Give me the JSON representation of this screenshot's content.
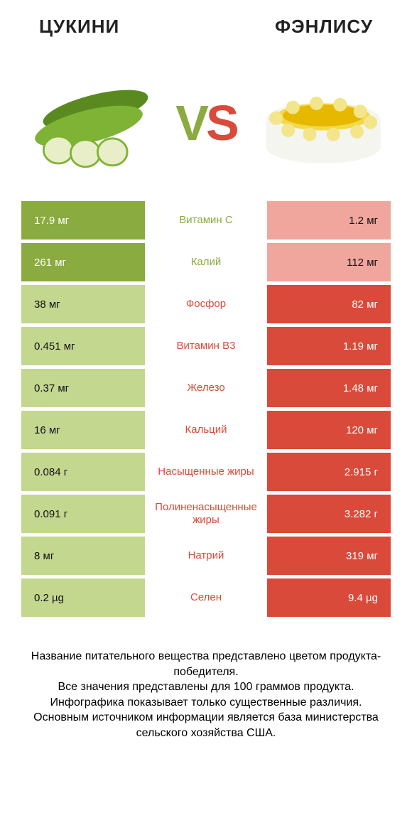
{
  "colors": {
    "green_dark": "#8aab3f",
    "green_light": "#c4d78f",
    "red_dark": "#d94a3a",
    "red_light": "#f0a69c",
    "mid_green_text": "#8aab3f",
    "mid_red_text": "#d94a3a"
  },
  "header": {
    "left_title": "ЦУКИНИ",
    "right_title": "ФЭНЛИСУ"
  },
  "vs": {
    "v": "V",
    "s": "S"
  },
  "rows": [
    {
      "left": "17.9 мг",
      "mid": "Витамин C",
      "right": "1.2 мг",
      "winner": "left"
    },
    {
      "left": "261 мг",
      "mid": "Калий",
      "right": "112 мг",
      "winner": "left"
    },
    {
      "left": "38 мг",
      "mid": "Фосфор",
      "right": "82 мг",
      "winner": "right"
    },
    {
      "left": "0.451 мг",
      "mid": "Витамин B3",
      "right": "1.19 мг",
      "winner": "right"
    },
    {
      "left": "0.37 мг",
      "mid": "Железо",
      "right": "1.48 мг",
      "winner": "right"
    },
    {
      "left": "16 мг",
      "mid": "Кальций",
      "right": "120 мг",
      "winner": "right"
    },
    {
      "left": "0.084 г",
      "mid": "Насыщенные жиры",
      "right": "2.915 г",
      "winner": "right"
    },
    {
      "left": "0.091 г",
      "mid": "Полиненасыщенные жиры",
      "right": "3.282 г",
      "winner": "right"
    },
    {
      "left": "8 мг",
      "mid": "Натрий",
      "right": "319 мг",
      "winner": "right"
    },
    {
      "left": "0.2 µg",
      "mid": "Селен",
      "right": "9.4 µg",
      "winner": "right"
    }
  ],
  "footer": {
    "line1": "Название питательного вещества представлено цветом продукта-победителя.",
    "line2": "Все значения представлены для 100 граммов продукта.",
    "line3": "Инфографика показывает только существенные различия.",
    "line4": "Основным источником информации является база министерства сельского хозяйства США."
  }
}
